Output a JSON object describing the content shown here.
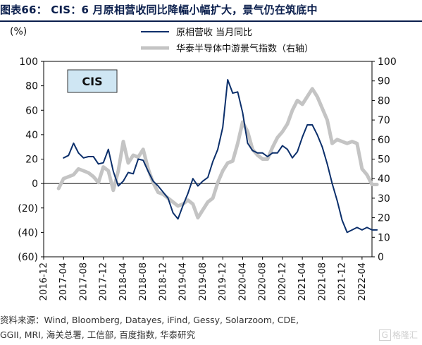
{
  "header": {
    "title": "图表66： CIS：6 月原相营收同比降幅小幅扩大，景气仍在筑底中"
  },
  "footer": {
    "source_line1": "资料来源：Wind, Bloomberg, Datayes, iFind, Gessy, Solarzoom, CDE,",
    "source_line2": "GGII, MRI, 海关总署, 工信部, 百度指数, 华泰研究",
    "watermark": "格隆汇"
  },
  "chart_data": {
    "type": "line",
    "left_unit_label": "(%)",
    "badge": "CIS",
    "x_tick_labels": [
      "2016-12",
      "2017-04",
      "2017-08",
      "2017-12",
      "2018-04",
      "2018-08",
      "2018-12",
      "2019-04",
      "2019-08",
      "2019-12",
      "2020-04",
      "2020-08",
      "2020-12",
      "2021-04",
      "2021-08",
      "2021-12",
      "2022-04"
    ],
    "x_start": "2016-12",
    "x_end": "2022-06",
    "y_left": {
      "range": [
        -60,
        100
      ],
      "ticks": [
        100,
        80,
        60,
        40,
        20,
        0,
        -20,
        -40,
        -60
      ],
      "tick_labels": [
        "100",
        "80",
        "60",
        "40",
        "20",
        "0",
        "(20)",
        "(40)",
        "(60)"
      ]
    },
    "y_right": {
      "range": [
        0,
        100
      ],
      "ticks": [
        100,
        90,
        80,
        70,
        60,
        50,
        40,
        30,
        20,
        10,
        0
      ],
      "tick_labels": [
        "100",
        "90",
        "80",
        "70",
        "60",
        "50",
        "40",
        "30",
        "20",
        "10",
        "0"
      ]
    },
    "legend_position": "top-right",
    "series": [
      {
        "name": "原相营收 当月同比",
        "axis": "left",
        "color": "#0b2f6b",
        "points": [
          [
            "2017-04",
            21
          ],
          [
            "2017-05",
            23
          ],
          [
            "2017-06",
            33
          ],
          [
            "2017-07",
            25
          ],
          [
            "2017-08",
            21
          ],
          [
            "2017-09",
            22
          ],
          [
            "2017-10",
            22
          ],
          [
            "2017-11",
            16
          ],
          [
            "2017-12",
            17
          ],
          [
            "2018-01",
            28
          ],
          [
            "2018-02",
            10
          ],
          [
            "2018-03",
            -2
          ],
          [
            "2018-04",
            2
          ],
          [
            "2018-05",
            9
          ],
          [
            "2018-06",
            8
          ],
          [
            "2018-07",
            20
          ],
          [
            "2018-08",
            19
          ],
          [
            "2018-09",
            10
          ],
          [
            "2018-10",
            2
          ],
          [
            "2018-11",
            -2
          ],
          [
            "2018-12",
            -7
          ],
          [
            "2019-01",
            -12
          ],
          [
            "2019-02",
            -24
          ],
          [
            "2019-03",
            -29
          ],
          [
            "2019-04",
            -18
          ],
          [
            "2019-05",
            -8
          ],
          [
            "2019-06",
            4
          ],
          [
            "2019-07",
            -2
          ],
          [
            "2019-08",
            2
          ],
          [
            "2019-09",
            5
          ],
          [
            "2019-10",
            18
          ],
          [
            "2019-11",
            28
          ],
          [
            "2019-12",
            46
          ],
          [
            "2020-01",
            85
          ],
          [
            "2020-02",
            74
          ],
          [
            "2020-03",
            75
          ],
          [
            "2020-04",
            58
          ],
          [
            "2020-05",
            33
          ],
          [
            "2020-06",
            27
          ],
          [
            "2020-07",
            25
          ],
          [
            "2020-08",
            25
          ],
          [
            "2020-09",
            22
          ],
          [
            "2020-10",
            25
          ],
          [
            "2020-11",
            25
          ],
          [
            "2020-12",
            31
          ],
          [
            "2021-01",
            28
          ],
          [
            "2021-02",
            21
          ],
          [
            "2021-03",
            26
          ],
          [
            "2021-04",
            38
          ],
          [
            "2021-05",
            48
          ],
          [
            "2021-06",
            48
          ],
          [
            "2021-07",
            40
          ],
          [
            "2021-08",
            30
          ],
          [
            "2021-09",
            16
          ],
          [
            "2021-10",
            0
          ],
          [
            "2021-11",
            -14
          ],
          [
            "2021-12",
            -30
          ],
          [
            "2022-01",
            -40
          ],
          [
            "2022-02",
            -38
          ],
          [
            "2022-03",
            -36
          ],
          [
            "2022-04",
            -38
          ],
          [
            "2022-05",
            -36
          ],
          [
            "2022-06",
            -38
          ],
          [
            "2022-07",
            -38
          ]
        ]
      },
      {
        "name": "华泰半导体中游景气指数（右轴）",
        "axis": "right",
        "color": "#c4c4c4",
        "points": [
          [
            "2017-03",
            35
          ],
          [
            "2017-04",
            40
          ],
          [
            "2017-05",
            41
          ],
          [
            "2017-06",
            42
          ],
          [
            "2017-07",
            45
          ],
          [
            "2017-08",
            44
          ],
          [
            "2017-09",
            43
          ],
          [
            "2017-10",
            41
          ],
          [
            "2017-11",
            38
          ],
          [
            "2017-12",
            46
          ],
          [
            "2018-01",
            44
          ],
          [
            "2018-02",
            34
          ],
          [
            "2018-03",
            44
          ],
          [
            "2018-04",
            59
          ],
          [
            "2018-05",
            48
          ],
          [
            "2018-06",
            52
          ],
          [
            "2018-07",
            51
          ],
          [
            "2018-08",
            55
          ],
          [
            "2018-09",
            45
          ],
          [
            "2018-10",
            38
          ],
          [
            "2018-11",
            33
          ],
          [
            "2018-12",
            32
          ],
          [
            "2019-01",
            30
          ],
          [
            "2019-02",
            28
          ],
          [
            "2019-03",
            26
          ],
          [
            "2019-04",
            27
          ],
          [
            "2019-05",
            29
          ],
          [
            "2019-06",
            27
          ],
          [
            "2019-07",
            20
          ],
          [
            "2019-08",
            24
          ],
          [
            "2019-09",
            28
          ],
          [
            "2019-10",
            30
          ],
          [
            "2019-11",
            38
          ],
          [
            "2019-12",
            44
          ],
          [
            "2020-01",
            48
          ],
          [
            "2020-02",
            49
          ],
          [
            "2020-03",
            58
          ],
          [
            "2020-04",
            69
          ],
          [
            "2020-05",
            64
          ],
          [
            "2020-06",
            55
          ],
          [
            "2020-07",
            52
          ],
          [
            "2020-08",
            50
          ],
          [
            "2020-09",
            50
          ],
          [
            "2020-10",
            56
          ],
          [
            "2020-11",
            61
          ],
          [
            "2020-12",
            64
          ],
          [
            "2021-01",
            68
          ],
          [
            "2021-02",
            75
          ],
          [
            "2021-03",
            80
          ],
          [
            "2021-04",
            78
          ],
          [
            "2021-05",
            82
          ],
          [
            "2021-06",
            86
          ],
          [
            "2021-07",
            82
          ],
          [
            "2021-08",
            76
          ],
          [
            "2021-09",
            70
          ],
          [
            "2021-10",
            58
          ],
          [
            "2021-11",
            60
          ],
          [
            "2021-12",
            59
          ],
          [
            "2022-01",
            58
          ],
          [
            "2022-02",
            59
          ],
          [
            "2022-03",
            58
          ],
          [
            "2022-04",
            45
          ],
          [
            "2022-05",
            42
          ],
          [
            "2022-06",
            37
          ],
          [
            "2022-07",
            37
          ]
        ]
      }
    ]
  }
}
